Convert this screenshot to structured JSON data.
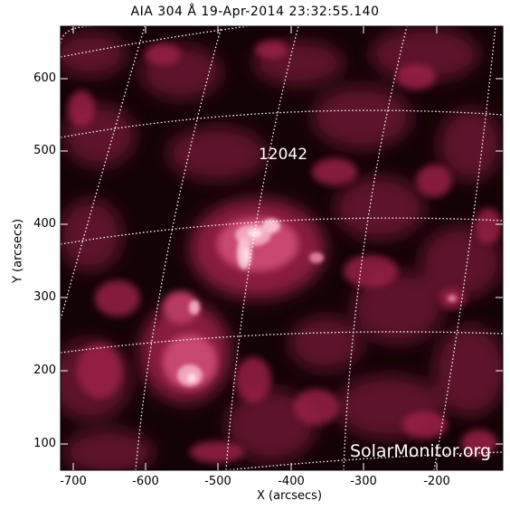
{
  "title": "AIA 304 Å 19-Apr-2014 23:32:55.140",
  "x_axis": {
    "label": "X (arcsecs)",
    "ticks": [
      "-700",
      "-600",
      "-500",
      "-400",
      "-300",
      "-200"
    ]
  },
  "y_axis": {
    "label": "Y (arcsecs)",
    "ticks": [
      "600",
      "500",
      "400",
      "300",
      "200",
      "100"
    ]
  },
  "active_region": "12042",
  "watermark": "SolarMonitor.org",
  "colors": {
    "background_sun": "#1a0508",
    "emission_mid": "#8c1c3c",
    "emission_bright": "#ffd6e2",
    "grid": "#ffffff"
  }
}
